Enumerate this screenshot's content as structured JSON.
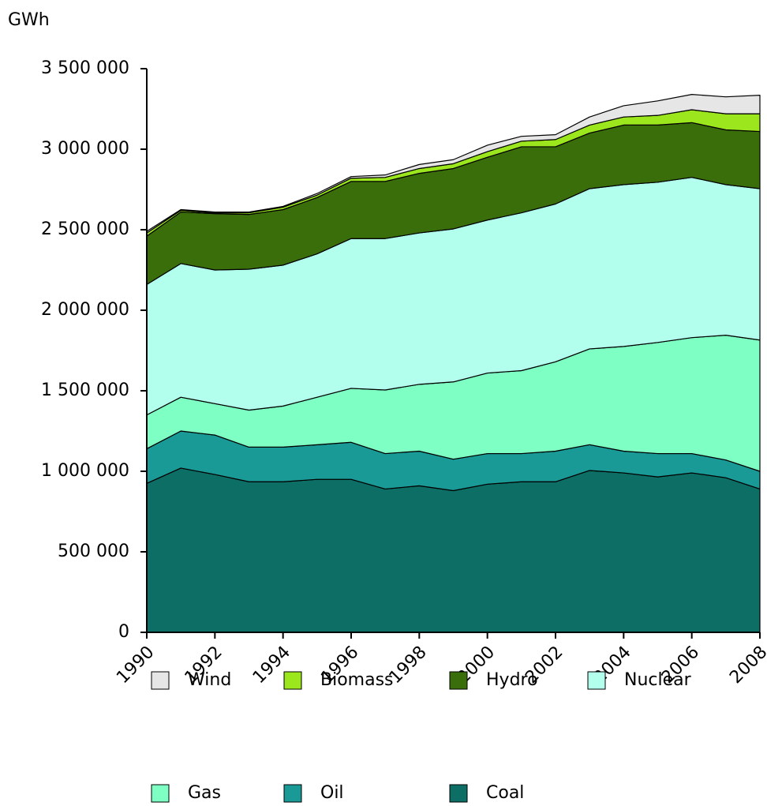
{
  "chart_data": {
    "type": "stacked_area",
    "y_axis_label": "GWh",
    "x": [
      1990,
      1991,
      1992,
      1993,
      1994,
      1995,
      1996,
      1997,
      1998,
      1999,
      2000,
      2001,
      2002,
      2003,
      2004,
      2005,
      2006,
      2007,
      2008
    ],
    "xlim": [
      1990,
      2008
    ],
    "xticks": [
      1990,
      1992,
      1994,
      1996,
      1998,
      2000,
      2002,
      2004,
      2006,
      2008
    ],
    "ylim": [
      0,
      3500000
    ],
    "yticks": [
      0,
      {
        "value": 500000,
        "label": "500 000"
      },
      {
        "value": 1000000,
        "label": "1 000 000"
      },
      {
        "value": 1500000,
        "label": "1 500 000"
      },
      {
        "value": 2000000,
        "label": "2 000 000"
      },
      {
        "value": 2500000,
        "label": "2 500 000"
      },
      {
        "value": 3000000,
        "label": "3 000 000"
      },
      {
        "value": 3500000,
        "label": "3 500 000"
      }
    ],
    "grid": false,
    "legend": "bottom",
    "series": [
      {
        "name": "Wind",
        "color": "#e6e6e6",
        "values": [
          10000,
          5000,
          5000,
          5000,
          5000,
          10000,
          10000,
          15000,
          25000,
          25000,
          40000,
          30000,
          30000,
          50000,
          70000,
          90000,
          95000,
          105000,
          115000
        ]
      },
      {
        "name": "Biomass",
        "color": "#9be61c",
        "values": [
          20000,
          10000,
          5000,
          10000,
          15000,
          15000,
          20000,
          25000,
          30000,
          30000,
          35000,
          35000,
          45000,
          50000,
          50000,
          60000,
          80000,
          100000,
          110000
        ]
      },
      {
        "name": "Hydro",
        "color": "#3a6e0a",
        "values": [
          300000,
          320000,
          350000,
          340000,
          345000,
          350000,
          355000,
          355000,
          370000,
          375000,
          390000,
          410000,
          355000,
          345000,
          370000,
          355000,
          340000,
          340000,
          355000
        ]
      },
      {
        "name": "Nuclear",
        "color": "#b3ffee",
        "values": [
          810000,
          830000,
          830000,
          875000,
          875000,
          890000,
          930000,
          940000,
          940000,
          950000,
          950000,
          980000,
          980000,
          995000,
          1005000,
          995000,
          995000,
          935000,
          940000
        ]
      },
      {
        "name": "Gas",
        "color": "#7effc4",
        "values": [
          210000,
          210000,
          195000,
          230000,
          255000,
          295000,
          335000,
          395000,
          415000,
          480000,
          500000,
          515000,
          555000,
          595000,
          650000,
          690000,
          720000,
          775000,
          815000
        ]
      },
      {
        "name": "Oil",
        "color": "#1a9a96",
        "values": [
          215000,
          230000,
          245000,
          215000,
          215000,
          215000,
          230000,
          220000,
          215000,
          195000,
          190000,
          175000,
          190000,
          160000,
          135000,
          145000,
          120000,
          110000,
          110000
        ]
      },
      {
        "name": "Coal",
        "color": "#0d6e66",
        "values": [
          925000,
          1020000,
          980000,
          935000,
          935000,
          950000,
          950000,
          890000,
          910000,
          880000,
          920000,
          935000,
          935000,
          1005000,
          990000,
          965000,
          990000,
          960000,
          890000
        ]
      }
    ]
  }
}
